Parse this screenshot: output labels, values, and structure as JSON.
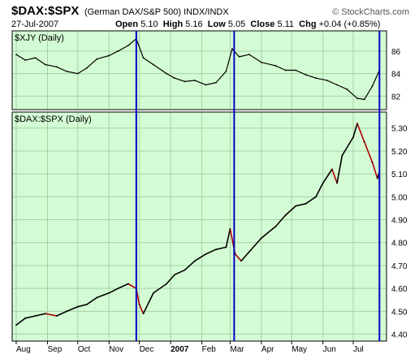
{
  "header": {
    "symbol": "$DAX:$SPX",
    "description": "(German DAX/S&P 500)",
    "exchange": "INDX/INDX",
    "brand": "© StockCharts.com",
    "date": "27-Jul-2007",
    "open_label": "Open",
    "open": "5.10",
    "high_label": "High",
    "high": "5.16",
    "low_label": "Low",
    "low": "5.05",
    "close_label": "Close",
    "close": "5.11",
    "chg_label": "Chg",
    "chg": "+0.04 (+0.85%)"
  },
  "colors": {
    "panel_background": "#d4fcd4",
    "grid": "#a8d0a8",
    "vertical_marker": "#0000c8",
    "price_up": "#000000",
    "price_down": "#b00000",
    "upper_line": "#000000"
  },
  "chart_data": [
    {
      "type": "line",
      "title": "$XJY (Daily)",
      "ylim": [
        80.8,
        87.8
      ],
      "yticks": [
        82,
        84,
        86
      ],
      "grid": true,
      "x": [
        "2006-08-01",
        "2006-08-10",
        "2006-08-20",
        "2006-08-30",
        "2006-09-10",
        "2006-09-20",
        "2006-10-01",
        "2006-10-10",
        "2006-10-20",
        "2006-11-01",
        "2006-11-10",
        "2006-11-20",
        "2006-11-28",
        "2006-12-05",
        "2006-12-15",
        "2006-12-28",
        "2007-01-05",
        "2007-01-15",
        "2007-01-25",
        "2007-02-05",
        "2007-02-15",
        "2007-02-25",
        "2007-03-03",
        "2007-03-10",
        "2007-03-20",
        "2007-04-01",
        "2007-04-15",
        "2007-04-25",
        "2007-05-05",
        "2007-05-15",
        "2007-05-25",
        "2007-06-05",
        "2007-06-15",
        "2007-06-25",
        "2007-07-05",
        "2007-07-12",
        "2007-07-20",
        "2007-07-27"
      ],
      "values": [
        85.7,
        85.2,
        85.4,
        84.8,
        84.6,
        84.2,
        84.0,
        84.5,
        85.3,
        85.6,
        86.0,
        86.5,
        87.1,
        85.4,
        84.8,
        84.0,
        83.6,
        83.3,
        83.4,
        83.0,
        83.2,
        84.2,
        86.2,
        85.5,
        85.7,
        85.0,
        84.7,
        84.3,
        84.3,
        83.9,
        83.6,
        83.4,
        83.0,
        82.6,
        81.8,
        81.7,
        82.9,
        84.3
      ]
    },
    {
      "type": "line",
      "title": "$DAX:$SPX (Daily)",
      "ylim": [
        4.37,
        5.37
      ],
      "yticks": [
        4.4,
        4.5,
        4.6,
        4.7,
        4.8,
        4.9,
        5.0,
        5.1,
        5.2,
        5.3
      ],
      "grid": true,
      "x": [
        "2006-08-01",
        "2006-08-10",
        "2006-08-20",
        "2006-08-30",
        "2006-09-10",
        "2006-09-20",
        "2006-10-01",
        "2006-10-10",
        "2006-10-20",
        "2006-11-01",
        "2006-11-10",
        "2006-11-20",
        "2006-11-28",
        "2006-12-01",
        "2006-12-05",
        "2006-12-15",
        "2006-12-28",
        "2007-01-05",
        "2007-01-15",
        "2007-01-25",
        "2007-02-05",
        "2007-02-15",
        "2007-02-25",
        "2007-03-01",
        "2007-03-06",
        "2007-03-12",
        "2007-03-20",
        "2007-04-01",
        "2007-04-15",
        "2007-04-25",
        "2007-05-05",
        "2007-05-15",
        "2007-05-25",
        "2007-06-01",
        "2007-06-10",
        "2007-06-15",
        "2007-06-20",
        "2007-07-01",
        "2007-07-05",
        "2007-07-12",
        "2007-07-20",
        "2007-07-25",
        "2007-07-27"
      ],
      "values": [
        4.44,
        4.47,
        4.48,
        4.49,
        4.48,
        4.5,
        4.52,
        4.53,
        4.56,
        4.58,
        4.6,
        4.62,
        4.6,
        4.53,
        4.49,
        4.58,
        4.62,
        4.66,
        4.68,
        4.72,
        4.75,
        4.77,
        4.78,
        4.86,
        4.75,
        4.72,
        4.76,
        4.82,
        4.87,
        4.92,
        4.96,
        4.97,
        5.0,
        5.06,
        5.12,
        5.06,
        5.18,
        5.26,
        5.32,
        5.24,
        5.15,
        5.08,
        5.11
      ]
    }
  ],
  "x_axis": {
    "ticks": [
      {
        "date": "2006-08-01",
        "label": "Aug",
        "bold": false
      },
      {
        "date": "2006-09-01",
        "label": "Sep",
        "bold": false
      },
      {
        "date": "2006-10-01",
        "label": "Oct",
        "bold": false
      },
      {
        "date": "2006-11-01",
        "label": "Nov",
        "bold": false
      },
      {
        "date": "2006-12-01",
        "label": "Dec",
        "bold": false
      },
      {
        "date": "2007-01-01",
        "label": "2007",
        "bold": true
      },
      {
        "date": "2007-02-01",
        "label": "Feb",
        "bold": false
      },
      {
        "date": "2007-03-01",
        "label": "Mar",
        "bold": false
      },
      {
        "date": "2007-04-01",
        "label": "Apr",
        "bold": false
      },
      {
        "date": "2007-05-01",
        "label": "May",
        "bold": false
      },
      {
        "date": "2007-06-01",
        "label": "Jun",
        "bold": false
      },
      {
        "date": "2007-07-01",
        "label": "Jul",
        "bold": false
      }
    ],
    "range": [
      "2006-07-28",
      "2007-08-03"
    ]
  },
  "vertical_markers": [
    "2006-11-28",
    "2007-03-05",
    "2007-07-27"
  ]
}
